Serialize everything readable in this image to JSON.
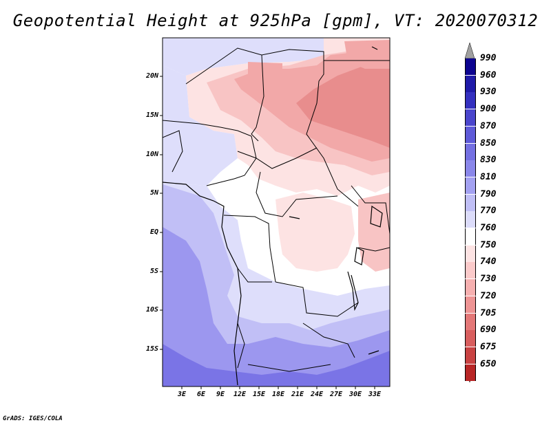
{
  "title": "Geopotential Height at 925hPa [gpm], VT: 2020070312",
  "credit": "GrADS: IGES/COLA",
  "lat_labels": [
    "20N",
    "15N",
    "10N",
    "5N",
    "EQ",
    "5S",
    "10S",
    "15S"
  ],
  "lon_labels": [
    "3E",
    "6E",
    "9E",
    "12E",
    "15E",
    "18E",
    "21E",
    "24E",
    "27E",
    "30E",
    "33E"
  ],
  "legend": {
    "levels": [
      "990",
      "960",
      "930",
      "900",
      "870",
      "850",
      "830",
      "810",
      "790",
      "770",
      "760",
      "750",
      "740",
      "730",
      "720",
      "705",
      "690",
      "675",
      "650"
    ],
    "colors": [
      "#0c0490",
      "#1f1aa8",
      "#3430bf",
      "#4a45cc",
      "#5e5ad8",
      "#7470e2",
      "#8a87ea",
      "#a3a1f1",
      "#c0bff6",
      "#dcdcfa",
      "#ffffff",
      "#fde3e3",
      "#fbcaca",
      "#f6b0b0",
      "#ee9494",
      "#e47878",
      "#d85e5e",
      "#c84242",
      "#b82626"
    ],
    "top_arrow_color": "#a0a0a0",
    "bottom_arrow_color": "#b81c1c"
  },
  "map_colors": {
    "blue_deep": "#7a74e6",
    "blue_mid": "#9c97ef",
    "blue_light": "#c1bff6",
    "blue_pale": "#dedefb",
    "white": "#ffffff",
    "pink_pale": "#fde3e3",
    "pink": "#f8c4c4",
    "pink_mid": "#f2a8a8",
    "red_light": "#e88d8d",
    "border": "#000000"
  }
}
